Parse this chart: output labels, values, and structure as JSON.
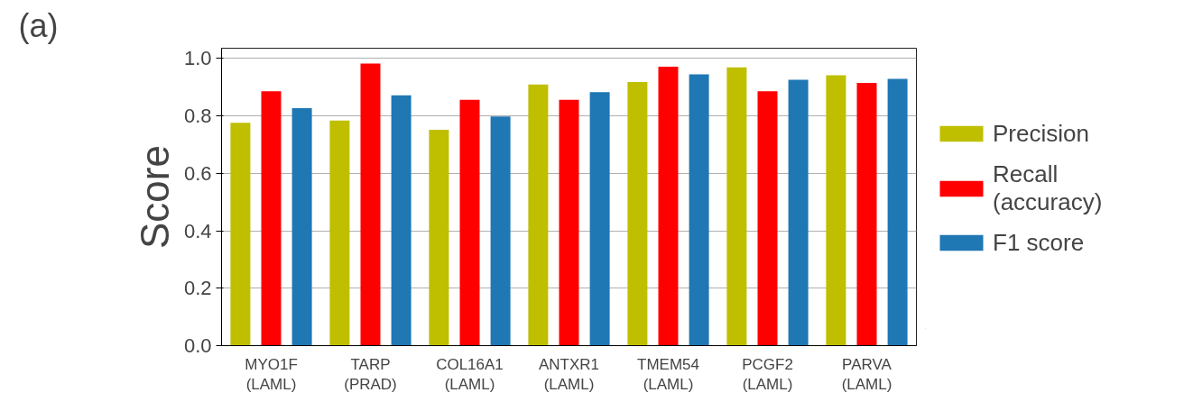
{
  "chart_data": {
    "type": "bar",
    "title": "(a)",
    "ylabel": "Score",
    "categories": [
      "MYO1F\n(LAML)",
      "TARP\n(PRAD)",
      "COL16A1\n(LAML)",
      "ANTXR1\n(LAML)",
      "TMEM54\n(LAML)",
      "PCGF2\n(LAML)",
      "PARVA\n(LAML)"
    ],
    "series": [
      {
        "name": "Precision",
        "color": "#bfbf00",
        "values": [
          0.776,
          0.784,
          0.752,
          0.91,
          0.918,
          0.969,
          0.942
        ]
      },
      {
        "name": "Recall\n(accuracy)",
        "color": "#ff0000",
        "values": [
          0.886,
          0.983,
          0.856,
          0.856,
          0.972,
          0.886,
          0.915
        ]
      },
      {
        "name": "F1 score",
        "color": "#1f77b4",
        "values": [
          0.827,
          0.872,
          0.798,
          0.883,
          0.945,
          0.926,
          0.929
        ]
      }
    ],
    "ylim": [
      0,
      1.036
    ],
    "yticks": [
      {
        "value": 0,
        "label": "0.0"
      },
      {
        "value": 0.2,
        "label": "0.2"
      },
      {
        "value": 0.4,
        "label": "0.4"
      },
      {
        "value": 0.6,
        "label": "0.6"
      },
      {
        "value": 0.8,
        "label": "0.8"
      },
      {
        "value": 1.0,
        "label": "1.0"
      }
    ],
    "grid": "y",
    "legend": "right"
  }
}
